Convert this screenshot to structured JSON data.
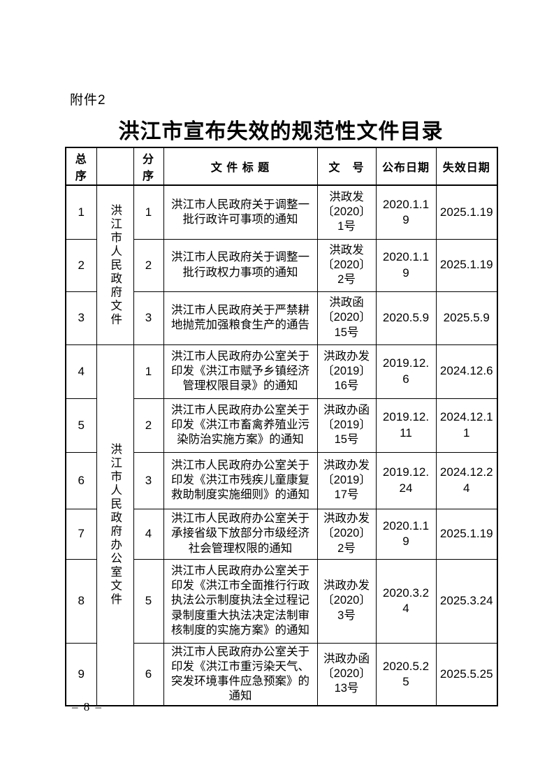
{
  "page": {
    "attachment_label": "附件2",
    "title": "洪江市宣布失效的规范性文件目录",
    "page_number": "– 8 –"
  },
  "table": {
    "headers": {
      "overall_no": "总序",
      "category": "",
      "sub_no": "分序",
      "doc_title": "文 件 标 题",
      "doc_no": "文　号",
      "publish_date": "公布日期",
      "expire_date": "失效日期"
    },
    "groups": [
      {
        "label": "洪江市人民政府文件"
      },
      {
        "label": "洪江市人民政府办公室文件"
      }
    ],
    "rows": [
      {
        "no": "1",
        "sub_no": "1",
        "title": "洪江市人民政府关于调整一批行政许可事项的通知",
        "doc_no": "洪政发\n〔2020〕\n1号",
        "publish_date": "2020.1.19",
        "expire_date": "2025.1.19"
      },
      {
        "no": "2",
        "sub_no": "2",
        "title": "洪江市人民政府关于调整一批行政权力事项的通知",
        "doc_no": "洪政发\n〔2020〕\n2号",
        "publish_date": "2020.1.19",
        "expire_date": "2025.1.19"
      },
      {
        "no": "3",
        "sub_no": "3",
        "title": "洪江市人民政府关于严禁耕地抛荒加强粮食生产的通告",
        "doc_no": "洪政函\n〔2020〕\n15号",
        "publish_date": "2020.5.9",
        "expire_date": "2025.5.9"
      },
      {
        "no": "4",
        "sub_no": "1",
        "title": "洪江市人民政府办公室关于印发《洪江市赋予乡镇经济管理权限目录》的通知",
        "doc_no": "洪政办发\n〔2019〕\n16号",
        "publish_date": "2019.12.6",
        "expire_date": "2024.12.6"
      },
      {
        "no": "5",
        "sub_no": "2",
        "title": "洪江市人民政府办公室关于印发《洪江市畜禽养殖业污染防治实施方案》的通知",
        "doc_no": "洪政办函\n〔2019〕\n15号",
        "publish_date": "2019.12.11",
        "expire_date": "2024.12.11"
      },
      {
        "no": "6",
        "sub_no": "3",
        "title": "洪江市人民政府办公室关于印发《洪江市残疾儿童康复救助制度实施细则》的通知",
        "doc_no": "洪政办发\n〔2019〕\n17号",
        "publish_date": "2019.12.24",
        "expire_date": "2024.12.24"
      },
      {
        "no": "7",
        "sub_no": "4",
        "title": "洪江市人民政府办公室关于承接省级下放部分市级经济社会管理权限的通知",
        "doc_no": "洪政办发\n〔2020〕\n2号",
        "publish_date": "2020.1.19",
        "expire_date": "2025.1.19"
      },
      {
        "no": "8",
        "sub_no": "5",
        "title": "洪江市人民政府办公室关于印发《洪江市全面推行行政执法公示制度执法全过程记录制度重大执法决定法制审核制度的实施方案》的通知",
        "doc_no": "洪政办发\n〔2020〕\n3号",
        "publish_date": "2020.3.24",
        "expire_date": "2025.3.24"
      },
      {
        "no": "9",
        "sub_no": "6",
        "title": "洪江市人民政府办公室关于印发《洪江市重污染天气、突发环境事件应急预案》的通知",
        "doc_no": "洪政办函\n〔2020〕\n13号",
        "publish_date": "2020.5.25",
        "expire_date": "2025.5.25"
      }
    ]
  }
}
